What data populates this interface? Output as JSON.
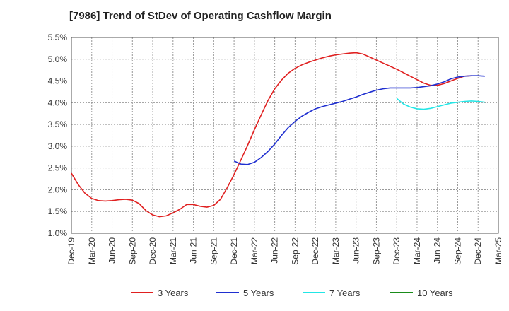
{
  "chart_data": {
    "type": "line",
    "title": "[7986]  Trend of StDev of Operating Cashflow Margin",
    "xlabel": "",
    "ylabel": "",
    "x_ticks": [
      "Dec-19",
      "Mar-20",
      "Jun-20",
      "Sep-20",
      "Dec-20",
      "Mar-21",
      "Jun-21",
      "Sep-21",
      "Dec-21",
      "Mar-22",
      "Jun-22",
      "Sep-22",
      "Dec-22",
      "Mar-23",
      "Jun-23",
      "Sep-23",
      "Dec-23",
      "Mar-24",
      "Jun-24",
      "Sep-24",
      "Dec-24",
      "Mar-25"
    ],
    "y_ticks": [
      "1.0%",
      "1.5%",
      "2.0%",
      "2.5%",
      "3.0%",
      "3.5%",
      "4.0%",
      "4.5%",
      "5.0%",
      "5.5%"
    ],
    "ylim": [
      1.0,
      5.5
    ],
    "grid": true,
    "legend_position": "bottom",
    "series": [
      {
        "name": "3 Years",
        "color": "#e02020",
        "start_index": 0,
        "values": [
          2.38,
          2.12,
          1.92,
          1.8,
          1.75,
          1.74,
          1.75,
          1.77,
          1.78,
          1.76,
          1.68,
          1.52,
          1.42,
          1.38,
          1.4,
          1.47,
          1.55,
          1.66,
          1.66,
          1.62,
          1.6,
          1.64,
          1.78,
          2.05,
          2.35,
          2.68,
          3.02,
          3.38,
          3.72,
          4.05,
          4.32,
          4.52,
          4.68,
          4.79,
          4.87,
          4.93,
          4.98,
          5.03,
          5.07,
          5.1,
          5.12,
          5.14,
          5.15,
          5.12,
          5.05,
          4.98,
          4.91,
          4.84,
          4.77,
          4.69,
          4.61,
          4.53,
          4.45,
          4.4,
          4.4,
          4.44,
          4.5,
          4.56,
          4.61,
          4.62
        ]
      },
      {
        "name": "5 Years",
        "color": "#1f2fd0",
        "start_index": 24,
        "values": [
          2.66,
          2.59,
          2.58,
          2.63,
          2.74,
          2.88,
          3.05,
          3.25,
          3.43,
          3.57,
          3.69,
          3.78,
          3.86,
          3.91,
          3.95,
          3.99,
          4.03,
          4.08,
          4.13,
          4.19,
          4.24,
          4.29,
          4.32,
          4.34,
          4.34,
          4.34,
          4.34,
          4.35,
          4.37,
          4.39,
          4.43,
          4.48,
          4.55,
          4.59,
          4.61,
          4.62,
          4.62,
          4.61
        ]
      },
      {
        "name": "7 Years",
        "color": "#22e6e6",
        "start_index": 48,
        "values": [
          4.1,
          3.97,
          3.9,
          3.86,
          3.85,
          3.87,
          3.91,
          3.95,
          3.99,
          4.01,
          4.03,
          4.04,
          4.03,
          4.01
        ]
      },
      {
        "name": "10 Years",
        "color": "#1a8c1a",
        "start_index": 0,
        "values": []
      }
    ]
  }
}
